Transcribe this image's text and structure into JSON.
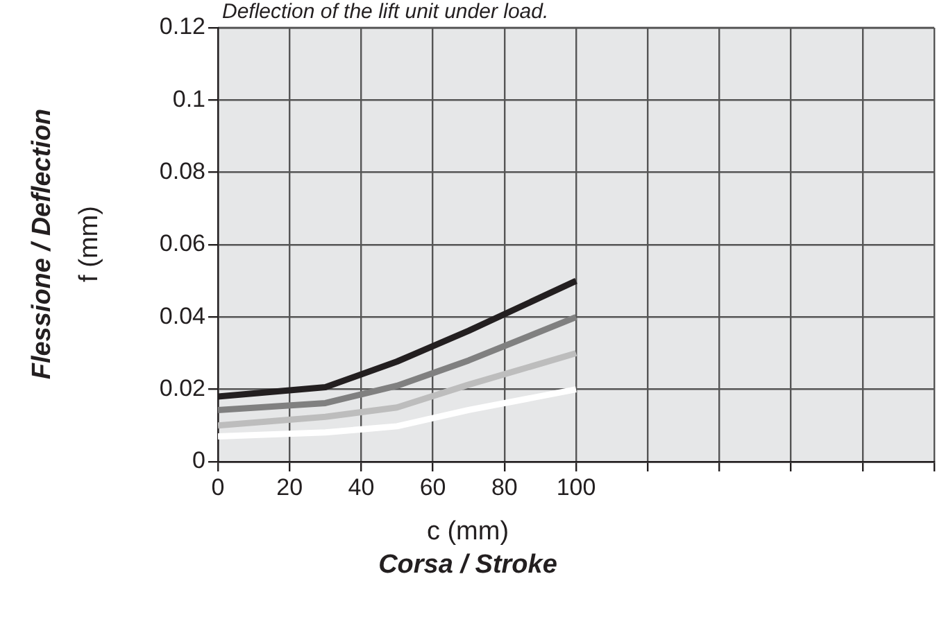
{
  "chart_data": {
    "type": "line",
    "title": "Deflection of the lift unit under load.",
    "xlabel": "c (mm)\nCorsa / Stroke",
    "ylabel": "Flessione / Deflection\nf (mm)",
    "x": [
      0,
      30,
      50,
      70,
      100
    ],
    "series": [
      {
        "color": "#231f20",
        "values": [
          0.018,
          0.0206,
          0.0277,
          0.0362,
          0.05
        ]
      },
      {
        "color": "#808080",
        "values": [
          0.0143,
          0.0162,
          0.021,
          0.028,
          0.04
        ]
      },
      {
        "color": "#bdbdbd",
        "values": [
          0.01,
          0.0124,
          0.015,
          0.0213,
          0.03
        ]
      },
      {
        "color": "#ffffff",
        "values": [
          0.007,
          0.0081,
          0.0098,
          0.0143,
          0.02
        ]
      }
    ],
    "xlim": [
      0,
      200
    ],
    "xticks": [
      0,
      20,
      40,
      60,
      80,
      100,
      {
        "value": 120,
        "label": null
      },
      {
        "value": 140,
        "label": null
      },
      {
        "value": 160,
        "label": null
      },
      {
        "value": 180,
        "label": null
      },
      {
        "value": 200,
        "label": null
      }
    ],
    "ylim": [
      0,
      0.12
    ],
    "yticks": [
      0,
      0.02,
      0.04,
      0.06,
      0.08,
      0.1,
      0.12
    ],
    "grid": true,
    "legend": false,
    "marker": "none",
    "line_style": "solid"
  }
}
